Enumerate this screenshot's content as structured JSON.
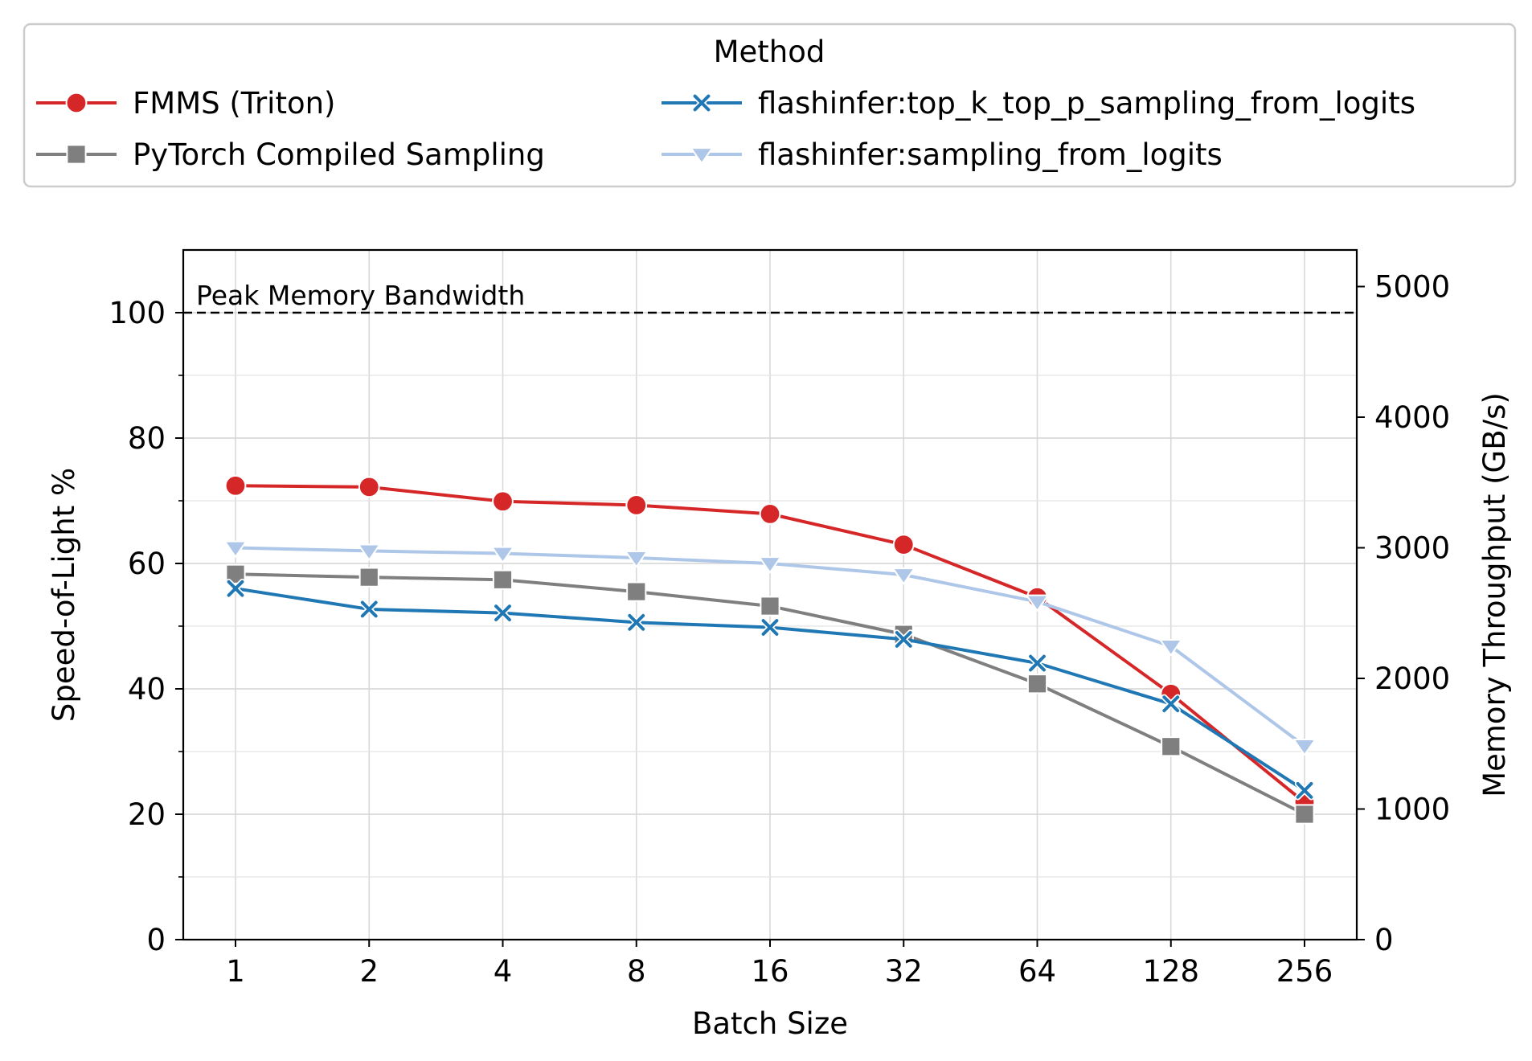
{
  "chart_data": {
    "type": "line",
    "title": "",
    "xlabel": "Batch Size",
    "ylabel": "Speed-of-Light %",
    "y2label": "Memory Throughput (GB/s)",
    "categories": [
      "1",
      "2",
      "4",
      "8",
      "16",
      "32",
      "64",
      "128",
      "256"
    ],
    "ylim": [
      0,
      110
    ],
    "yticks": [
      "0",
      "20",
      "40",
      "60",
      "80",
      "100"
    ],
    "y2lim": [
      0,
      5280
    ],
    "y2ticks": [
      "0",
      "1000",
      "2000",
      "3000",
      "4000",
      "5000"
    ],
    "grid": true,
    "legend": {
      "title": "Method",
      "placement": "top, outside plot, two columns"
    },
    "reference_line": {
      "value": 100,
      "label": "Peak Memory Bandwidth",
      "style": "dashed",
      "color": "#000000"
    },
    "series": [
      {
        "name": "FMMS (Triton)",
        "color": "#d62728",
        "marker": "circle",
        "values": [
          72.4,
          72.2,
          69.9,
          69.3,
          67.9,
          63.0,
          54.6,
          39.2,
          21.9
        ]
      },
      {
        "name": "PyTorch Compiled Sampling",
        "color": "#7f7f7f",
        "marker": "square",
        "values": [
          58.3,
          57.8,
          57.4,
          55.5,
          53.2,
          48.7,
          40.8,
          30.8,
          20.0
        ]
      },
      {
        "name": "flashinfer:top_k_top_p_sampling_from_logits",
        "color": "#1f77b4",
        "marker": "x",
        "values": [
          56.0,
          52.7,
          52.1,
          50.6,
          49.8,
          47.9,
          44.1,
          37.6,
          23.8
        ]
      },
      {
        "name": "flashinfer:sampling_from_logits",
        "color": "#aec7e8",
        "marker": "triangle-down",
        "values": [
          62.5,
          62.0,
          61.6,
          60.9,
          60.0,
          58.2,
          53.9,
          46.8,
          30.9
        ]
      }
    ]
  }
}
